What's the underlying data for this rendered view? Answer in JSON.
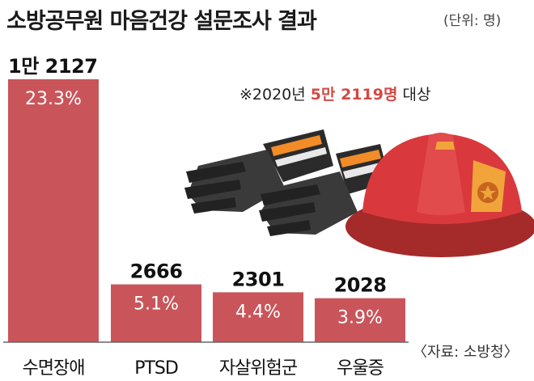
{
  "title": "소방공무원 마음건강 설문조사 결과",
  "unit": "(단위: 명)",
  "note": {
    "prefix": "※2020년 ",
    "highlight": "5만 2119명",
    "suffix": " 대상"
  },
  "source": "〈자료: 소방청〉",
  "colors": {
    "bar": "#c9555a",
    "highlight": "#d24a44",
    "axis": "#666666"
  },
  "decoration_icons": [
    "firefighter-glove-icon",
    "firefighter-glove-icon",
    "firefighter-helmet-icon"
  ],
  "chart_data": {
    "type": "bar",
    "title": "소방공무원 마음건강 설문조사 결과",
    "unit": "(단위: 명)",
    "categories": [
      "수면장애",
      "PTSD",
      "자살위험군",
      "우울증"
    ],
    "values": [
      12127,
      2666,
      2301,
      2028
    ],
    "value_labels": [
      "1만 2127",
      "2666",
      "2301",
      "2028"
    ],
    "percent_labels": [
      "23.3%",
      "5.1%",
      "4.4%",
      "3.9%"
    ],
    "ylim": [
      0,
      12127
    ],
    "grid": false
  }
}
